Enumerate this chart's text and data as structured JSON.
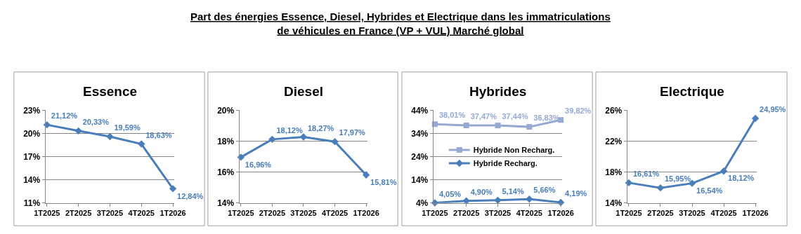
{
  "chart_data": [
    {
      "type": "other",
      "title": "Part des énergies Essence, Diesel, Hybrides et Electrique dans les immatriculations\nde véhicules en France (VP + VUL) Marché global"
    },
    {
      "type": "line",
      "title": "Essence",
      "categories": [
        "1T2025",
        "2T2025",
        "3T2025",
        "4T2025",
        "1T2026"
      ],
      "series": [
        {
          "color": "#4a7ebb",
          "values": [
            21.12,
            20.33,
            19.59,
            18.63,
            12.84
          ],
          "value_labels": [
            "21,12%",
            "20,33%",
            "19,59%",
            "18,63%",
            "12,84%"
          ]
        }
      ],
      "ylim": [
        11,
        23
      ],
      "yticks": [
        {
          "value": 11,
          "label": "11%"
        },
        {
          "value": 14,
          "label": "14%"
        },
        {
          "value": 17,
          "label": "17%"
        },
        {
          "value": 20,
          "label": "20%"
        },
        {
          "value": 23,
          "label": "23%"
        }
      ],
      "grid": "y",
      "marker": "diamond",
      "line_style": "solid"
    },
    {
      "type": "line",
      "title": "Diesel",
      "categories": [
        "1T2025",
        "2T2025",
        "3T2025",
        "4T2025",
        "1T2026"
      ],
      "series": [
        {
          "color": "#4a7ebb",
          "values": [
            16.96,
            18.12,
            18.27,
            17.97,
            15.81
          ],
          "value_labels": [
            "16,96%",
            "18,12%",
            "18,27%",
            "17,97%",
            "15,81%"
          ]
        }
      ],
      "ylim": [
        14,
        20
      ],
      "yticks": [
        {
          "value": 14,
          "label": "14%"
        },
        {
          "value": 16,
          "label": "16%"
        },
        {
          "value": 18,
          "label": "18%"
        },
        {
          "value": 20,
          "label": "20%"
        }
      ],
      "grid": "y",
      "marker": "diamond",
      "line_style": "solid"
    },
    {
      "type": "line",
      "title": "Hybrides",
      "categories": [
        "1T2025",
        "2T2025",
        "3T2025",
        "4T2025",
        "1T2026"
      ],
      "series": [
        {
          "name": "Hybride Non Recharg.",
          "color": "#95a9d2",
          "marker": "square",
          "values": [
            38.01,
            37.47,
            37.44,
            36.83,
            39.82
          ],
          "value_labels": [
            "38,01%",
            "37,47%",
            "37,44%",
            "36,83%",
            "39,82%"
          ]
        },
        {
          "name": "Hybride Recharg.",
          "color": "#4a7ebb",
          "marker": "diamond",
          "values": [
            4.05,
            4.9,
            5.14,
            5.66,
            4.19
          ],
          "value_labels": [
            "4,05%",
            "4,90%",
            "5,14%",
            "5,66%",
            "4,19%"
          ]
        }
      ],
      "ylim": [
        4,
        44
      ],
      "yticks": [
        {
          "value": 4,
          "label": "4%"
        },
        {
          "value": 14,
          "label": "14%"
        },
        {
          "value": 24,
          "label": "24%"
        },
        {
          "value": 34,
          "label": "34%"
        },
        {
          "value": 44,
          "label": "44%"
        }
      ],
      "grid": "y",
      "legend": "right",
      "line_style": "solid"
    },
    {
      "type": "line",
      "title": "Electrique",
      "categories": [
        "1T2025",
        "2T2025",
        "3T2025",
        "4T2025",
        "1T2026"
      ],
      "series": [
        {
          "color": "#4a7ebb",
          "values": [
            16.61,
            15.95,
            16.54,
            18.12,
            24.95
          ],
          "value_labels": [
            "16,61%",
            "15,95%",
            "16,54%",
            "18,12%",
            "24,95%"
          ]
        }
      ],
      "ylim": [
        14,
        26
      ],
      "yticks": [
        {
          "value": 14,
          "label": "14%"
        },
        {
          "value": 18,
          "label": "18%"
        },
        {
          "value": 22,
          "label": "22%"
        },
        {
          "value": 26,
          "label": "26%"
        }
      ],
      "grid": "y",
      "marker": "diamond",
      "line_style": "solid"
    }
  ]
}
